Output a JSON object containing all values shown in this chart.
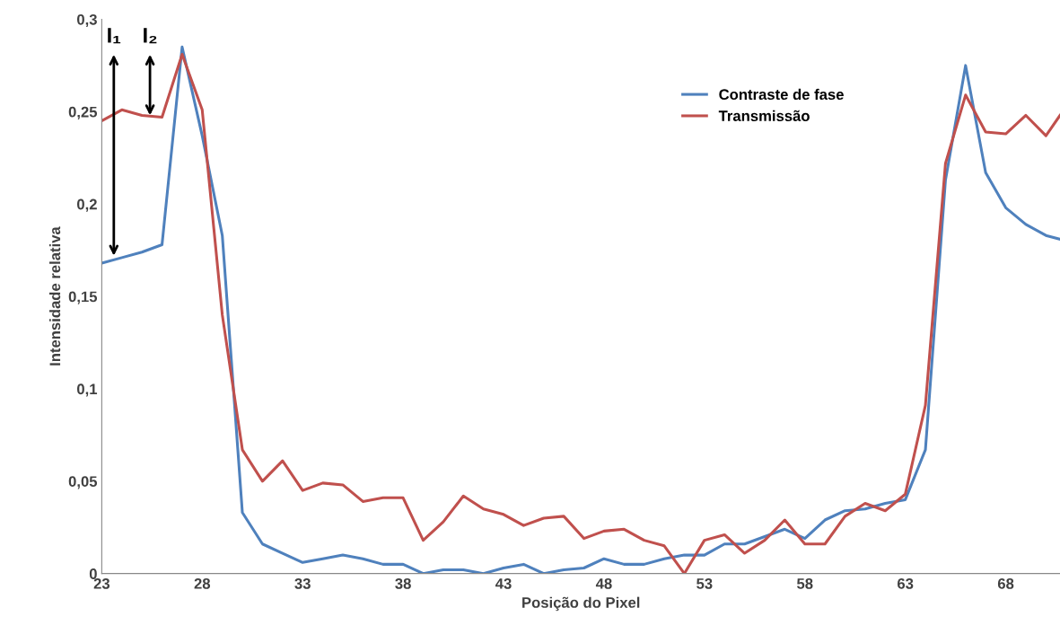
{
  "chart_data": {
    "type": "line",
    "xlabel": "Posição do Pixel",
    "ylabel": "Intensidade relativa",
    "x": [
      23,
      24,
      25,
      26,
      27,
      28,
      29,
      30,
      31,
      32,
      33,
      34,
      35,
      36,
      37,
      38,
      39,
      40,
      41,
      42,
      43,
      44,
      45,
      46,
      47,
      48,
      49,
      50,
      51,
      52,
      53,
      54,
      55,
      56,
      57,
      58,
      59,
      60,
      61,
      62,
      63,
      64,
      65,
      66,
      67,
      68,
      69,
      70,
      70.7
    ],
    "series": [
      {
        "name": "Contraste de fase",
        "color": "#4f81bd",
        "values": [
          0.168,
          0.171,
          0.174,
          0.178,
          0.285,
          0.237,
          0.183,
          0.033,
          0.016,
          0.011,
          0.006,
          0.008,
          0.01,
          0.008,
          0.005,
          0.005,
          0,
          0.002,
          0.002,
          0,
          0.003,
          0.005,
          0,
          0.002,
          0.003,
          0.008,
          0.005,
          0.005,
          0.008,
          0.01,
          0.01,
          0.016,
          0.016,
          0.02,
          0.024,
          0.019,
          0.029,
          0.034,
          0.035,
          0.038,
          0.04,
          0.067,
          0.213,
          0.275,
          0.217,
          0.198,
          0.189,
          0.183,
          0.181
        ]
      },
      {
        "name": "Transmissão",
        "color": "#c0504d",
        "values": [
          0.245,
          0.251,
          0.248,
          0.247,
          0.281,
          0.251,
          0.14,
          0.067,
          0.05,
          0.061,
          0.045,
          0.049,
          0.048,
          0.039,
          0.041,
          0.041,
          0.018,
          0.028,
          0.042,
          0.035,
          0.032,
          0.026,
          0.03,
          0.031,
          0.019,
          0.023,
          0.024,
          0.018,
          0.015,
          0,
          0.018,
          0.021,
          0.011,
          0.018,
          0.029,
          0.016,
          0.016,
          0.031,
          0.038,
          0.034,
          0.043,
          0.091,
          0.222,
          0.259,
          0.239,
          0.238,
          0.248,
          0.237,
          0.248
        ]
      }
    ],
    "xlim": [
      23,
      70.7
    ],
    "xticks": [
      23,
      28,
      33,
      38,
      43,
      48,
      53,
      58,
      63,
      68
    ],
    "ylim": [
      0,
      0.3
    ],
    "yticks": [
      {
        "value": 0,
        "label": "0"
      },
      {
        "value": 0.05,
        "label": "0,05"
      },
      {
        "value": 0.1,
        "label": "0,1"
      },
      {
        "value": 0.15,
        "label": "0,15"
      },
      {
        "value": 0.2,
        "label": "0,2"
      },
      {
        "value": 0.25,
        "label": "0,25"
      },
      {
        "value": 0.3,
        "label": "0,3"
      }
    ],
    "annotations": [
      {
        "text": "I₁",
        "x": 23.6,
        "y": 0.172
      },
      {
        "text": "I₂",
        "x": 25.4,
        "y": 0.248
      }
    ],
    "legend": "top right",
    "grid": false,
    "marker": "none",
    "line_style": "solid"
  }
}
